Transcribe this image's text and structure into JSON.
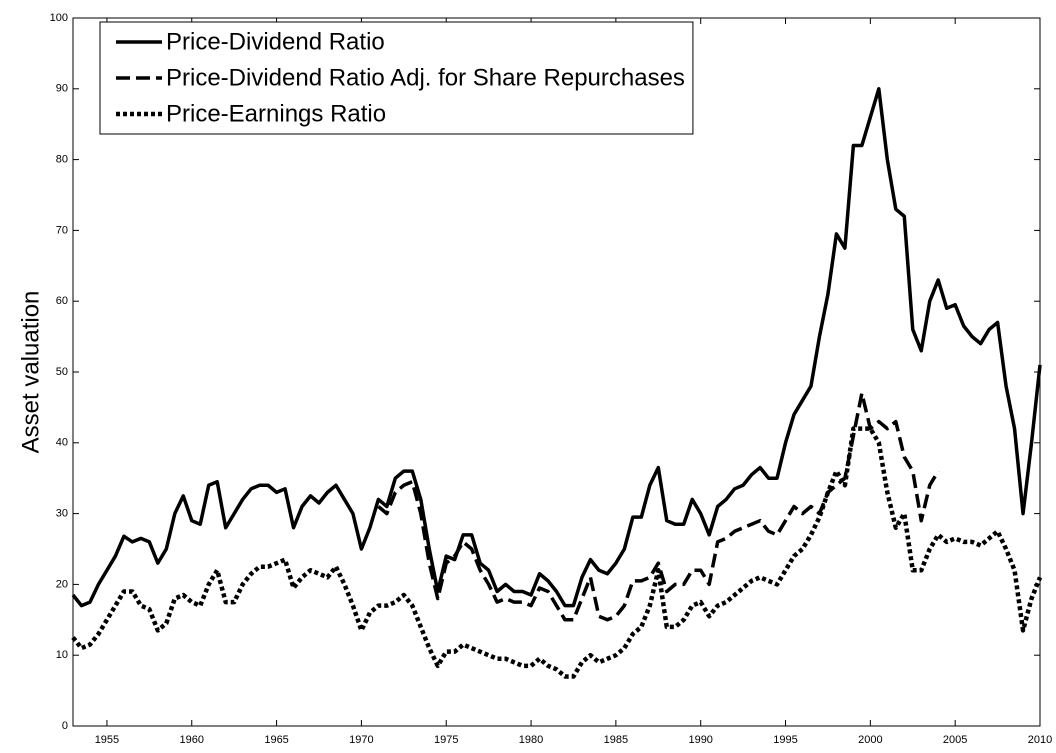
{
  "chart_data": {
    "type": "line",
    "y_label": "Asset valuation",
    "x": [
      1953,
      1953.5,
      1954,
      1954.5,
      1955,
      1955.5,
      1956,
      1956.5,
      1957,
      1957.5,
      1958,
      1958.5,
      1959,
      1959.5,
      1960,
      1960.5,
      1961,
      1961.5,
      1962,
      1962.5,
      1963,
      1963.5,
      1964,
      1964.5,
      1965,
      1965.5,
      1966,
      1966.5,
      1967,
      1967.5,
      1968,
      1968.5,
      1969,
      1969.5,
      1970,
      1970.5,
      1971,
      1971.5,
      1972,
      1972.5,
      1973,
      1973.5,
      1974,
      1974.5,
      1975,
      1975.5,
      1976,
      1976.5,
      1977,
      1977.5,
      1978,
      1978.5,
      1979,
      1979.5,
      1980,
      1980.5,
      1981,
      1981.5,
      1982,
      1982.5,
      1983,
      1983.5,
      1984,
      1984.5,
      1985,
      1985.5,
      1986,
      1986.5,
      1987,
      1987.5,
      1988,
      1988.5,
      1989,
      1989.5,
      1990,
      1990.5,
      1991,
      1991.5,
      1992,
      1992.5,
      1993,
      1993.5,
      1994,
      1994.5,
      1995,
      1995.5,
      1996,
      1996.5,
      1997,
      1997.5,
      1998,
      1998.5,
      1999,
      1999.5,
      2000,
      2000.5,
      2001,
      2001.5,
      2002,
      2002.5,
      2003,
      2003.5,
      2004,
      2004.5,
      2005,
      2005.5,
      2006,
      2006.5,
      2007,
      2007.5,
      2008,
      2008.5,
      2009,
      2009.5,
      2010
    ],
    "series": [
      {
        "name": "Price-Dividend Ratio",
        "color": "#000000",
        "style": "solid",
        "values": [
          18.5,
          17,
          17.5,
          20,
          22,
          24,
          26.8,
          26,
          26.5,
          26,
          23,
          25,
          30,
          32.5,
          29,
          28.5,
          34,
          34.5,
          28,
          30,
          32,
          33.5,
          34,
          34,
          33,
          33.5,
          28,
          31,
          32.5,
          31.5,
          33,
          34,
          32,
          30,
          25,
          28,
          32,
          31,
          35,
          36,
          36,
          32,
          25,
          19,
          24,
          23.5,
          27,
          27,
          23,
          22,
          19,
          20,
          19,
          19,
          18.5,
          21.5,
          20.5,
          19,
          17,
          17,
          21,
          23.5,
          22,
          21.5,
          23,
          25,
          29.5,
          29.5,
          34,
          36.5,
          29,
          28.5,
          28.5,
          32,
          30,
          27,
          31,
          32,
          33.5,
          34,
          35.5,
          36.5,
          35,
          35,
          40,
          44,
          46,
          48,
          55,
          61,
          69.5,
          67.5,
          82,
          82,
          86,
          90,
          80,
          73,
          72,
          56,
          53,
          60,
          63,
          59,
          59.5,
          56.5,
          55,
          54,
          56,
          57,
          48,
          42,
          30,
          40,
          51
        ]
      },
      {
        "name": "Price-Dividend Ratio Adj. for Share Repurchases",
        "color": "#000000",
        "style": "dashed",
        "values": [
          null,
          null,
          null,
          null,
          null,
          null,
          null,
          null,
          null,
          null,
          null,
          null,
          null,
          null,
          null,
          null,
          null,
          null,
          null,
          null,
          null,
          null,
          null,
          null,
          null,
          null,
          null,
          null,
          null,
          null,
          null,
          null,
          null,
          null,
          null,
          null,
          31,
          30,
          33,
          34,
          34.5,
          30,
          23,
          18,
          23,
          24,
          26,
          25,
          22,
          20,
          17.5,
          18,
          17.5,
          17.5,
          17,
          19.5,
          19,
          17,
          15,
          15,
          18,
          21,
          15.5,
          15,
          15.5,
          17,
          20.5,
          20.5,
          21,
          23,
          19,
          20,
          20,
          22,
          22,
          20,
          26,
          26.5,
          27.5,
          28,
          28.5,
          29,
          27.5,
          27,
          29,
          31,
          30,
          31,
          30,
          33,
          34,
          35,
          41,
          47,
          42,
          43,
          42,
          43,
          38,
          36,
          29,
          34,
          36,
          null,
          null,
          null,
          null,
          null,
          null,
          null,
          null,
          null,
          null,
          null,
          null
        ]
      },
      {
        "name": "Price-Earnings Ratio",
        "color": "#000000",
        "style": "dotted",
        "values": [
          12.5,
          11,
          11.5,
          13,
          15,
          17,
          19,
          19,
          17,
          16.5,
          13.5,
          14.5,
          18,
          18.5,
          17.5,
          17,
          20,
          22,
          17.5,
          17.5,
          20,
          21.5,
          22.5,
          22.5,
          23,
          23.5,
          19.5,
          21,
          22,
          21.5,
          21,
          22.5,
          20,
          17,
          13.5,
          16,
          17,
          17,
          17.5,
          18.5,
          17,
          14,
          11,
          8.5,
          10.5,
          10.5,
          11.5,
          11,
          10.5,
          10,
          9.5,
          9.5,
          9,
          8.5,
          8.5,
          9.5,
          8.5,
          8,
          7,
          7,
          9,
          10,
          9,
          9.5,
          10,
          11,
          13,
          14,
          17,
          22,
          14,
          14,
          15,
          17,
          17.5,
          15.5,
          17,
          17.5,
          18.5,
          19.5,
          20.5,
          21,
          20.5,
          20,
          22,
          24,
          25,
          27,
          29.5,
          33,
          36,
          34,
          42,
          42,
          42,
          40,
          33,
          28,
          30,
          22,
          22,
          25,
          27,
          26,
          26.5,
          26,
          26,
          25.5,
          26.5,
          27.5,
          25,
          22,
          13.5,
          18,
          21
        ]
      }
    ],
    "xlim": [
      1953,
      2010
    ],
    "xticks": [
      1955,
      1960,
      1965,
      1970,
      1975,
      1980,
      1985,
      1990,
      1995,
      2000,
      2005,
      2010
    ],
    "ylim": [
      0,
      100
    ],
    "yticks": [
      0,
      10,
      20,
      30,
      40,
      50,
      60,
      70,
      80,
      90,
      100
    ],
    "grid": false,
    "legend": "upper left"
  }
}
